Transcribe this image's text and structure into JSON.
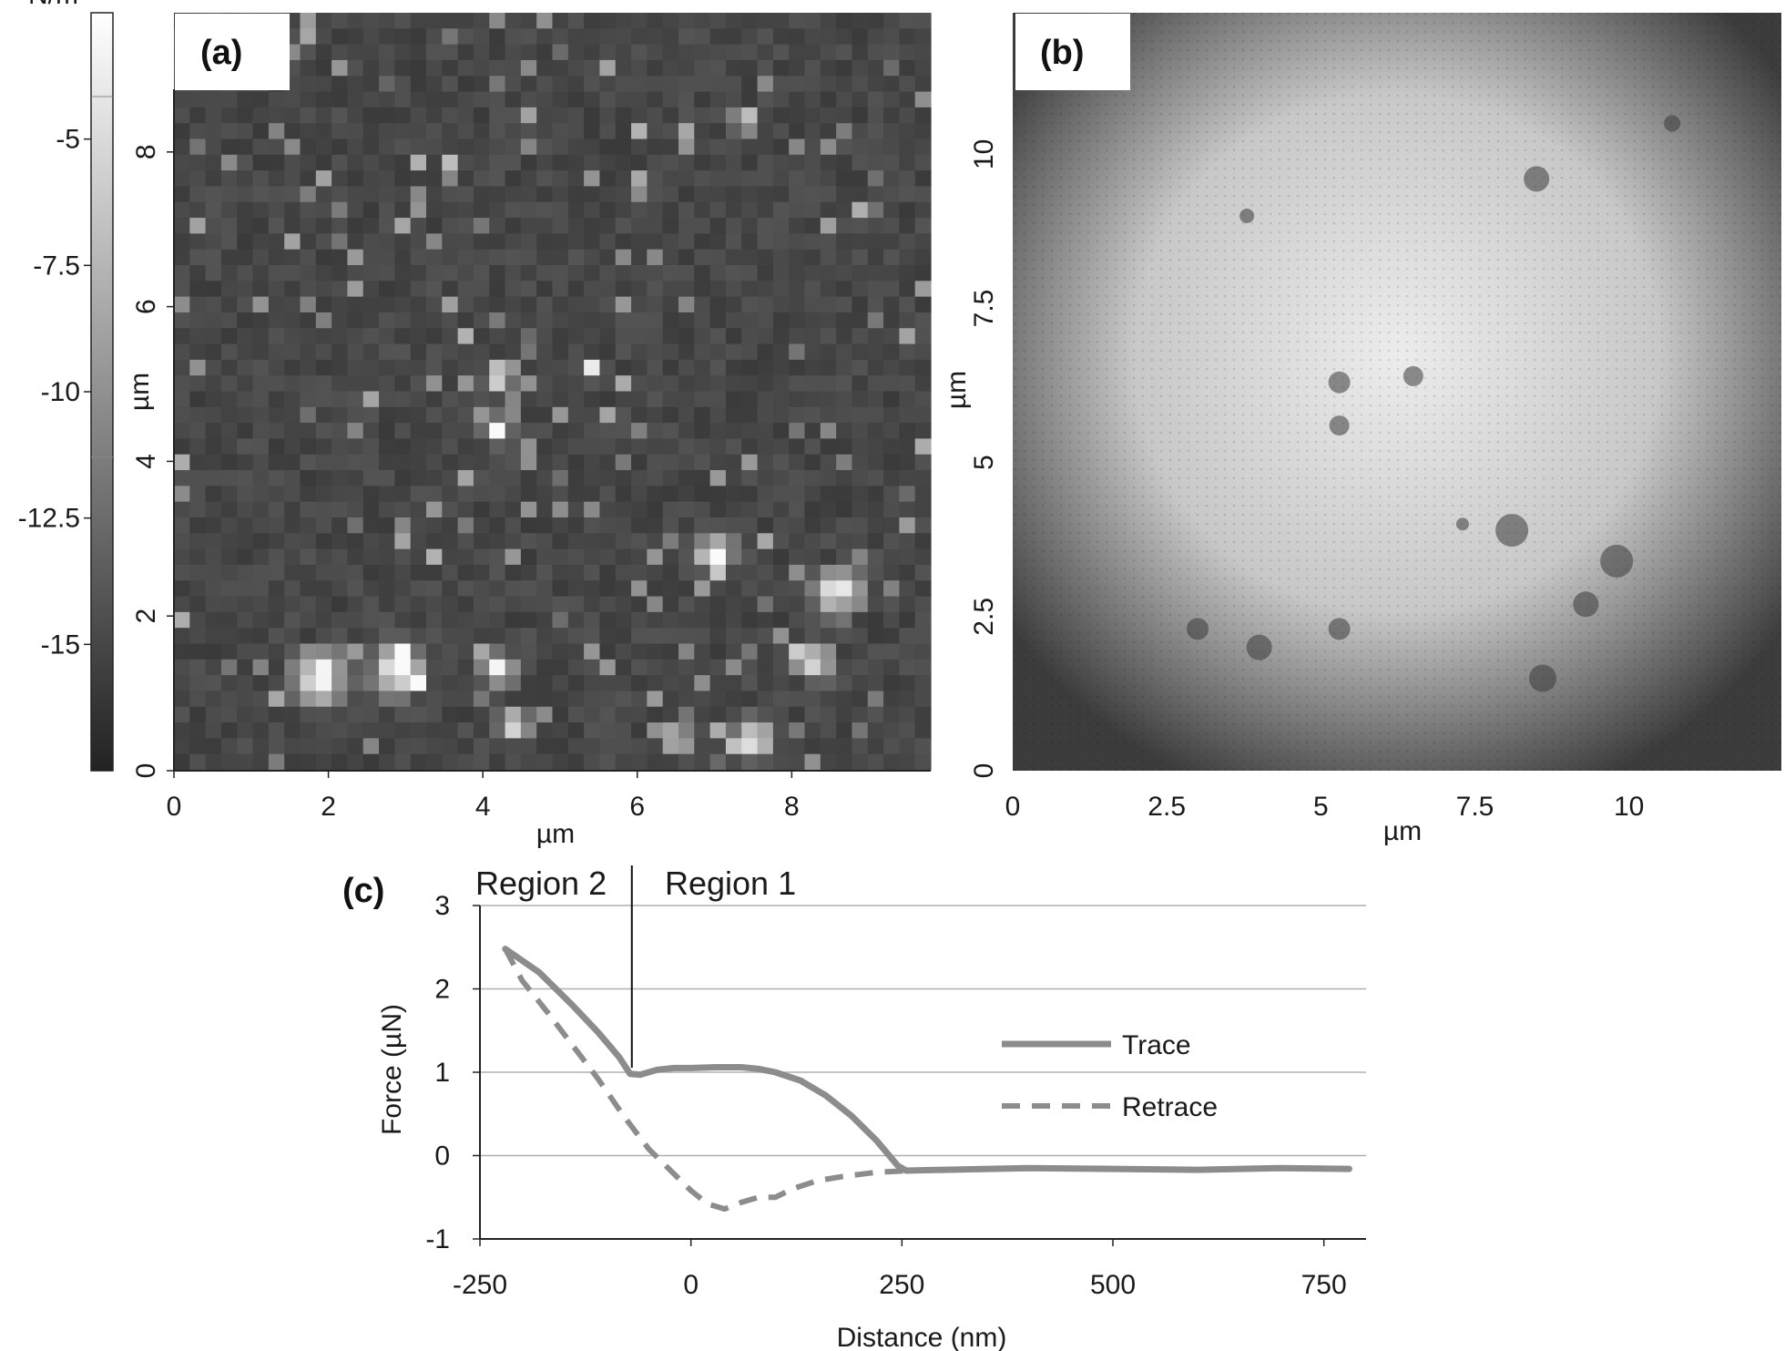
{
  "colors": {
    "curve": "#8c8c8c",
    "grid": "#b0b0b0",
    "axis": "#222222"
  },
  "panel_a": {
    "label": "(a)",
    "colorbar_unit": "N/m",
    "colorbar_ticks": [
      "-5",
      "-7.5",
      "-10",
      "-12.5",
      "-15"
    ],
    "colorbar_values": [
      -5,
      -7.5,
      -10,
      -12.5,
      -15
    ],
    "colorbar_range": [
      -17.5,
      -2.5
    ],
    "x_ticks": [
      "0",
      "2",
      "4",
      "6",
      "8"
    ],
    "x_values": [
      0,
      2,
      4,
      6,
      8
    ],
    "y_ticks": [
      "0",
      "2",
      "4",
      "6",
      "8"
    ],
    "y_values": [
      0,
      2,
      4,
      6,
      8
    ],
    "xlabel": "µm",
    "ylabel": "µm",
    "range": [
      0,
      9.8
    ]
  },
  "panel_b": {
    "label": "(b)",
    "x_ticks": [
      "0",
      "2.5",
      "5",
      "7.5",
      "10"
    ],
    "x_values": [
      0,
      2.5,
      5,
      7.5,
      10
    ],
    "y_ticks": [
      "0",
      "2.5",
      "5",
      "7.5",
      "10"
    ],
    "y_values": [
      0,
      2.5,
      5,
      7.5,
      10
    ],
    "xlabel": "µm",
    "ylabel": "µm",
    "range": [
      0,
      12
    ]
  },
  "chart_data": {
    "type": "line",
    "panel_label": "(c)",
    "xlabel": "Distance (nm)",
    "ylabel": "Force (µN)",
    "xlim": [
      -250,
      800
    ],
    "ylim": [
      -1,
      3
    ],
    "x_ticks": [
      "-250",
      "0",
      "250",
      "500",
      "750"
    ],
    "x_tick_values": [
      -250,
      0,
      250,
      500,
      750
    ],
    "y_ticks": [
      "-1",
      "0",
      "1",
      "2",
      "3"
    ],
    "y_tick_values": [
      -1,
      0,
      1,
      2,
      3
    ],
    "grid": "horizontal",
    "legend_position": "center-right",
    "annotations": {
      "region2": "Region 2",
      "region1": "Region 1",
      "divider_x": -70
    },
    "series": [
      {
        "name": "Trace",
        "style": "solid",
        "x": [
          -220,
          -180,
          -140,
          -110,
          -85,
          -72,
          -60,
          -40,
          -20,
          0,
          30,
          60,
          80,
          100,
          130,
          160,
          190,
          220,
          245,
          255,
          300,
          400,
          500,
          600,
          700,
          780
        ],
        "y": [
          2.48,
          2.2,
          1.8,
          1.48,
          1.18,
          0.98,
          0.97,
          1.03,
          1.05,
          1.05,
          1.06,
          1.06,
          1.04,
          1.0,
          0.9,
          0.72,
          0.48,
          0.18,
          -0.12,
          -0.18,
          -0.17,
          -0.15,
          -0.16,
          -0.17,
          -0.15,
          -0.16
        ]
      },
      {
        "name": "Retrace",
        "style": "dashed",
        "x": [
          -220,
          -200,
          -170,
          -140,
          -110,
          -80,
          -50,
          -20,
          0,
          20,
          40,
          60,
          80,
          100,
          120,
          150,
          180,
          220,
          260,
          300,
          400,
          500,
          600,
          700,
          780
        ],
        "y": [
          2.48,
          2.1,
          1.72,
          1.32,
          0.92,
          0.48,
          0.08,
          -0.22,
          -0.42,
          -0.58,
          -0.64,
          -0.56,
          -0.5,
          -0.5,
          -0.4,
          -0.3,
          -0.25,
          -0.2,
          -0.18,
          -0.17,
          -0.15,
          -0.16,
          -0.17,
          -0.15,
          -0.16
        ]
      }
    ]
  }
}
